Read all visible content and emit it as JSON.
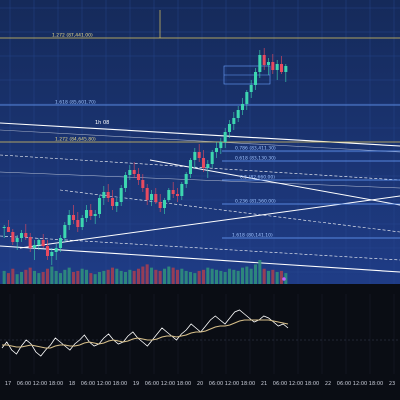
{
  "chart_data": {
    "type": "candlestick",
    "title": "",
    "xlabel": "",
    "ylabel": "",
    "x_ticks": [
      "17",
      "06:00",
      "12:00",
      "18:00",
      "18",
      "06:00",
      "12:00",
      "18:00",
      "19",
      "06:00",
      "12:00",
      "18:00",
      "20",
      "06:00",
      "12:00",
      "18:00",
      "21",
      "06:00",
      "12:00",
      "18:00",
      "22",
      "06:00",
      "12:00",
      "18:00",
      "23"
    ],
    "fib_levels": [
      {
        "label": "1.272 (87,441.00)",
        "color": "#e0c860"
      },
      {
        "label": "1.618 (85,601.70)",
        "color": "#6aa0ff"
      },
      {
        "label": "1.272 (84,645.80)",
        "color": "#e0c860"
      },
      {
        "label": "0.786 (83,411.30)",
        "color": "#6aa0ff"
      },
      {
        "label": "0.618 (83,130.30)",
        "color": "#6aa0ff"
      },
      {
        "label": "0.5 (82,660.00)",
        "color": "#6aa0ff"
      },
      {
        "label": "0.236 (81,560.00)",
        "color": "#6aa0ff"
      },
      {
        "label": "1.618 (80,141.10)",
        "color": "#6aa0ff"
      }
    ],
    "annotations": [
      "1h 08"
    ],
    "candles": [
      [
        182,
        185,
        172,
        183
      ],
      [
        183,
        190,
        178,
        178
      ],
      [
        178,
        181,
        165,
        168
      ],
      [
        168,
        175,
        160,
        172
      ],
      [
        172,
        180,
        168,
        177
      ],
      [
        177,
        186,
        170,
        173
      ],
      [
        173,
        177,
        158,
        162
      ],
      [
        162,
        170,
        150,
        165
      ],
      [
        165,
        172,
        160,
        170
      ],
      [
        170,
        176,
        162,
        164
      ],
      [
        164,
        170,
        150,
        154
      ],
      [
        154,
        162,
        145,
        158
      ],
      [
        158,
        166,
        150,
        162
      ],
      [
        162,
        175,
        158,
        172
      ],
      [
        172,
        188,
        168,
        185
      ],
      [
        185,
        200,
        180,
        195
      ],
      [
        195,
        205,
        186,
        190
      ],
      [
        190,
        198,
        178,
        183
      ],
      [
        183,
        195,
        180,
        192
      ],
      [
        192,
        205,
        188,
        200
      ],
      [
        200,
        206,
        190,
        194
      ],
      [
        194,
        200,
        186,
        196
      ],
      [
        196,
        215,
        192,
        212
      ],
      [
        212,
        224,
        205,
        218
      ],
      [
        218,
        226,
        208,
        212
      ],
      [
        212,
        220,
        200,
        204
      ],
      [
        204,
        212,
        198,
        208
      ],
      [
        208,
        225,
        204,
        222
      ],
      [
        222,
        238,
        218,
        235
      ],
      [
        235,
        245,
        230,
        240
      ],
      [
        240,
        248,
        232,
        236
      ],
      [
        236,
        242,
        225,
        230
      ],
      [
        230,
        236,
        218,
        222
      ],
      [
        222,
        226,
        205,
        210
      ],
      [
        210,
        220,
        204,
        216
      ],
      [
        216,
        222,
        206,
        208
      ],
      [
        208,
        216,
        198,
        202
      ],
      [
        202,
        212,
        196,
        210
      ],
      [
        210,
        222,
        208,
        220
      ],
      [
        220,
        228,
        212,
        216
      ],
      [
        216,
        222,
        208,
        214
      ],
      [
        214,
        228,
        210,
        226
      ],
      [
        226,
        238,
        222,
        236
      ],
      [
        236,
        252,
        232,
        250
      ],
      [
        250,
        262,
        242,
        258
      ],
      [
        258,
        266,
        248,
        252
      ],
      [
        252,
        260,
        238,
        242
      ],
      [
        242,
        250,
        232,
        246
      ],
      [
        246,
        260,
        242,
        258
      ],
      [
        258,
        268,
        252,
        262
      ],
      [
        262,
        272,
        256,
        268
      ],
      [
        268,
        282,
        262,
        278
      ],
      [
        278,
        290,
        272,
        286
      ],
      [
        286,
        298,
        280,
        292
      ],
      [
        292,
        304,
        288,
        300
      ],
      [
        300,
        312,
        295,
        306
      ],
      [
        306,
        320,
        300,
        318
      ],
      [
        318,
        330,
        312,
        325
      ],
      [
        325,
        342,
        320,
        338
      ],
      [
        338,
        360,
        332,
        355
      ],
      [
        355,
        362,
        340,
        345
      ],
      [
        345,
        352,
        335,
        348
      ],
      [
        348,
        356,
        336,
        340
      ],
      [
        340,
        350,
        330,
        346
      ],
      [
        346,
        354,
        336,
        338
      ],
      [
        338,
        346,
        328,
        344
      ]
    ],
    "volumes": [
      12,
      10,
      14,
      9,
      11,
      13,
      15,
      12,
      10,
      11,
      14,
      16,
      12,
      10,
      13,
      15,
      11,
      12,
      14,
      13,
      10,
      9,
      11,
      12,
      13,
      15,
      14,
      12,
      11,
      13,
      12,
      14,
      16,
      18,
      15,
      13,
      12,
      14,
      16,
      15,
      13,
      14,
      12,
      11,
      10,
      12,
      13,
      15,
      14,
      13,
      12,
      11,
      14,
      13,
      12,
      15,
      16,
      14,
      18,
      22,
      14,
      12,
      13,
      11,
      12,
      10
    ],
    "oscillator": {
      "series": [
        {
          "values": [
            42,
            48,
            40,
            36,
            44,
            50,
            46,
            38,
            34,
            40,
            45,
            52,
            48,
            44,
            40,
            46,
            50,
            55,
            48,
            44,
            46,
            52,
            56,
            50,
            46,
            48,
            54,
            58,
            52,
            48,
            44,
            50,
            56,
            62,
            58,
            54,
            50,
            56,
            60,
            66,
            62,
            58,
            64,
            70,
            74,
            70,
            66,
            72,
            78,
            80,
            76,
            72,
            68,
            70,
            74,
            72,
            68,
            64,
            66,
            62
          ],
          "color": "#ffffff"
        },
        {
          "values": [
            45,
            45,
            44,
            43,
            43,
            44,
            45,
            44,
            43,
            42,
            42,
            44,
            45,
            45,
            44,
            44,
            45,
            47,
            48,
            47,
            46,
            47,
            49,
            50,
            49,
            48,
            49,
            51,
            52,
            51,
            50,
            50,
            51,
            53,
            54,
            54,
            53,
            54,
            55,
            57,
            58,
            58,
            59,
            61,
            63,
            64,
            64,
            65,
            67,
            69,
            70,
            70,
            70,
            70,
            70,
            70,
            69,
            68,
            67,
            66
          ],
          "color": "#d8c08a"
        }
      ]
    }
  }
}
